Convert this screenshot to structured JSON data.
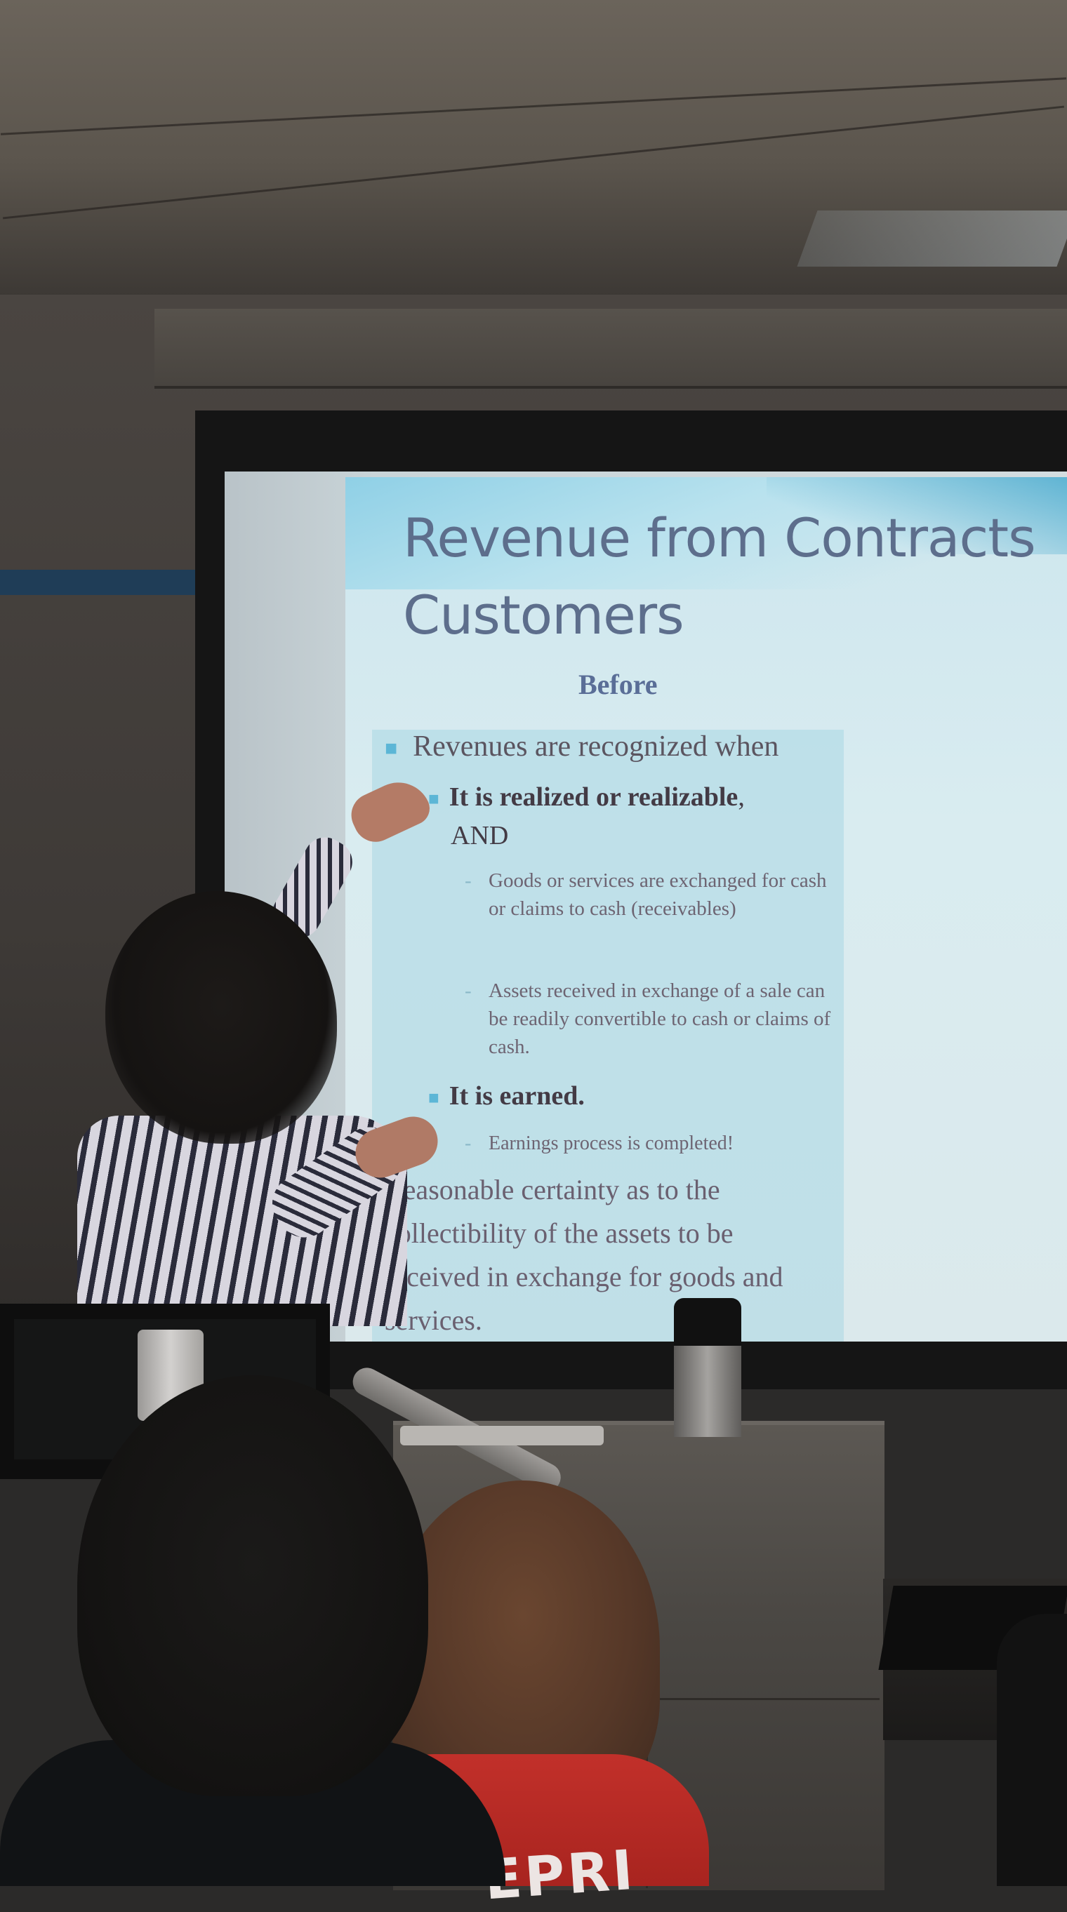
{
  "slide": {
    "title_line1": "Revenue from Contracts",
    "title_line2": "Customers",
    "subtitle": "Before",
    "bullets": {
      "intro": "Revenues are recognized when",
      "realized_bold": "It is realized or realizable",
      "realized_tail": ",",
      "and": "AND",
      "goods": "Goods or services are exchanged for cash or claims to cash (receivables)",
      "assets": "Assets received in exchange of a sale can be readily convertible to cash or claims of cash.",
      "earned": "It is earned.",
      "earnings": "Earnings process is completed!",
      "reasonable": "Reasonable certainty as to the collectibility of the assets to be received in exchange for goods and services."
    }
  },
  "shirt_text": "EPRI",
  "colors": {
    "slide_title": "#5d6e8c",
    "slide_accent": "#5cb6d6",
    "shirt_red": "#c2302a"
  }
}
